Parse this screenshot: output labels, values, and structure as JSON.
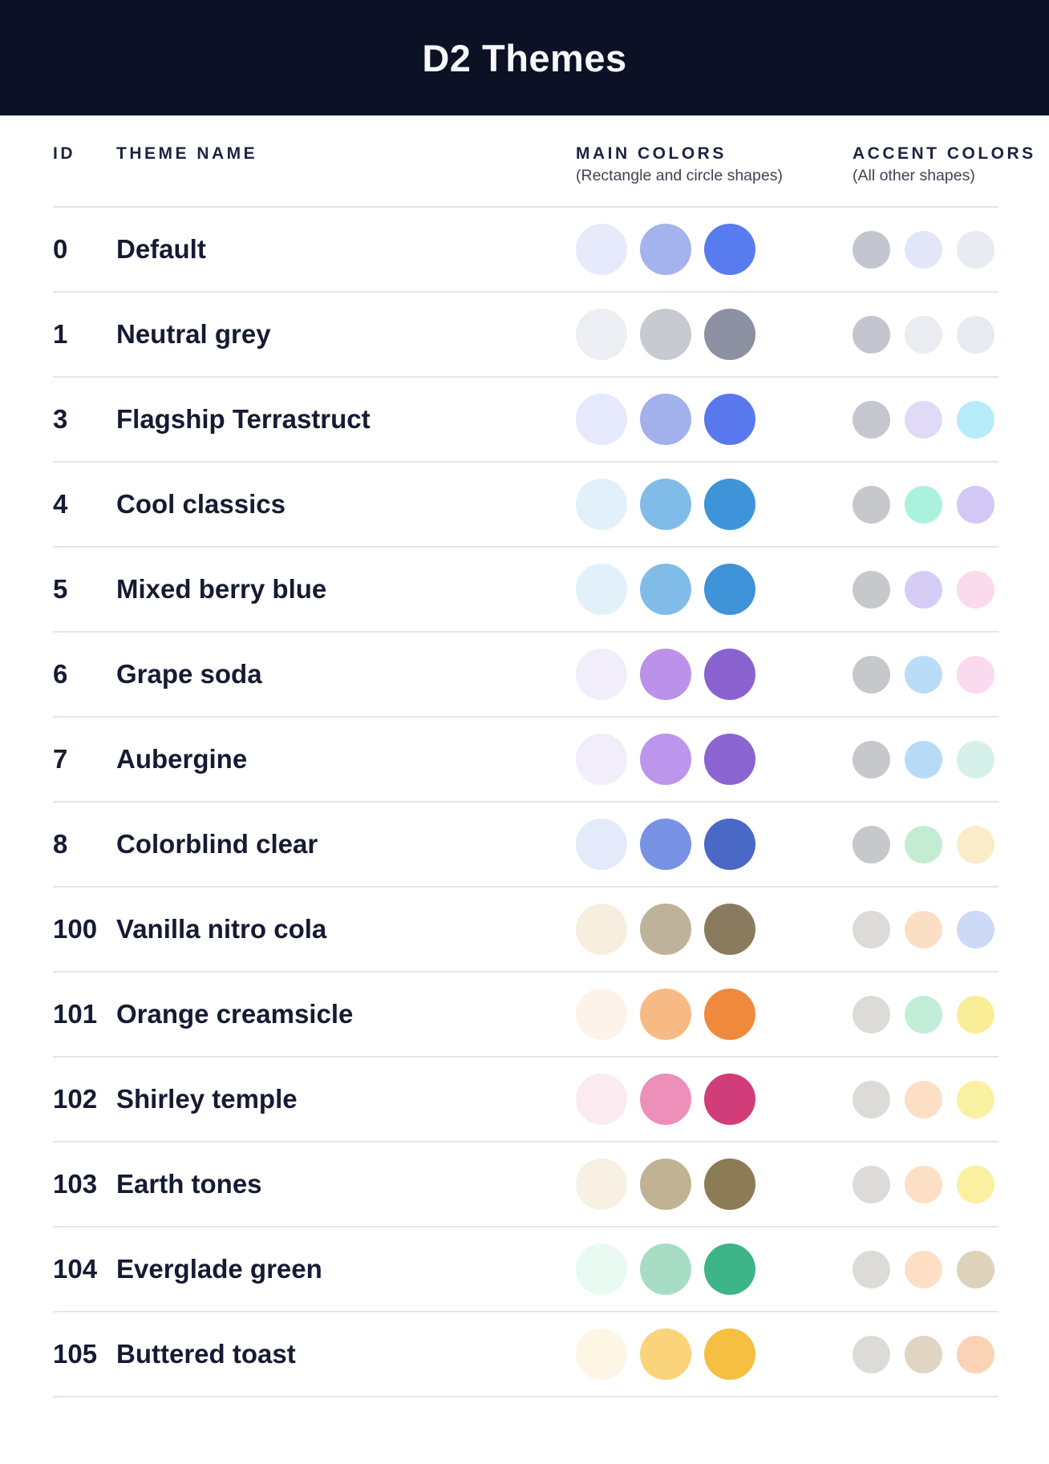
{
  "header": {
    "title": "D2 Themes"
  },
  "columns": {
    "id": "ID",
    "theme_name": "THEME NAME",
    "main_colors": "MAIN COLORS",
    "main_colors_sub": "(Rectangle and circle shapes)",
    "accent_colors": "ACCENT COLORS",
    "accent_colors_sub": "(All other shapes)"
  },
  "themes": [
    {
      "id": "0",
      "name": "Default",
      "main": [
        "#E7EAFB",
        "#A4B2EE",
        "#587CEF"
      ],
      "accent": [
        "#C3C5CF",
        "#E3E6F9",
        "#E9EBF3"
      ]
    },
    {
      "id": "1",
      "name": "Neutral grey",
      "main": [
        "#EDEFF4",
        "#C8CAD2",
        "#8C90A0"
      ],
      "accent": [
        "#C3C5CF",
        "#EAECF2",
        "#E8EAF1"
      ]
    },
    {
      "id": "3",
      "name": "Flagship Terrastruct",
      "main": [
        "#E6E9FB",
        "#A2B0EC",
        "#5A78ED"
      ],
      "accent": [
        "#C5C6CE",
        "#E1DAF7",
        "#B6ECF9"
      ]
    },
    {
      "id": "4",
      "name": "Cool classics",
      "main": [
        "#E2F0FA",
        "#81BCE9",
        "#3F93D8"
      ],
      "accent": [
        "#C7C8CC",
        "#ABF2DE",
        "#D2C7F5"
      ]
    },
    {
      "id": "5",
      "name": "Mixed berry blue",
      "main": [
        "#E2F0FA",
        "#81BCE9",
        "#3F93D8"
      ],
      "accent": [
        "#C7C8CC",
        "#D6CDF6",
        "#FBD9EE"
      ]
    },
    {
      "id": "6",
      "name": "Grape soda",
      "main": [
        "#F2EDFB",
        "#BB91EA",
        "#8A63D0"
      ],
      "accent": [
        "#C7C8CC",
        "#BBDCF8",
        "#FBD9EE"
      ]
    },
    {
      "id": "7",
      "name": "Aubergine",
      "main": [
        "#F1EDFA",
        "#BC96EC",
        "#8A64D0"
      ],
      "accent": [
        "#C7C8CC",
        "#B7DAF7",
        "#D6F1EA"
      ]
    },
    {
      "id": "8",
      "name": "Colorblind clear",
      "main": [
        "#E4EAFA",
        "#7792E4",
        "#4A68C6"
      ],
      "accent": [
        "#C7C8CC",
        "#C4ECD3",
        "#FBECC9"
      ]
    },
    {
      "id": "100",
      "name": "Vanilla nitro cola",
      "main": [
        "#F7EEE0",
        "#BFB29B",
        "#8A7A5E"
      ],
      "accent": [
        "#DCDBD8",
        "#FBDFC5",
        "#CCD9F7"
      ]
    },
    {
      "id": "101",
      "name": "Orange creamsicle",
      "main": [
        "#FEF3EB",
        "#F8BA85",
        "#EF8A3C"
      ],
      "accent": [
        "#DCDBD8",
        "#C2EDD8",
        "#F9EE97"
      ]
    },
    {
      "id": "102",
      "name": "Shirley temple",
      "main": [
        "#FCEAF1",
        "#EC90BA",
        "#D03D78"
      ],
      "accent": [
        "#DCDBD8",
        "#FCDFC5",
        "#FAF0A2"
      ]
    },
    {
      "id": "103",
      "name": "Earth tones",
      "main": [
        "#F8F0E3",
        "#C0B394",
        "#8B7C55"
      ],
      "accent": [
        "#DCDBD8",
        "#FCDFC5",
        "#FAF0A0"
      ]
    },
    {
      "id": "104",
      "name": "Everglade green",
      "main": [
        "#E8FAF1",
        "#A7DDC4",
        "#3EB489"
      ],
      "accent": [
        "#DCDBD8",
        "#FCDFC5",
        "#DED2BA"
      ]
    },
    {
      "id": "105",
      "name": "Buttered toast",
      "main": [
        "#FDF6E4",
        "#FAD37A",
        "#F6BF41"
      ],
      "accent": [
        "#DCDBD8",
        "#E0D5C3",
        "#FBD2B6"
      ]
    }
  ],
  "colors": {
    "header_bg": "#0D1126",
    "header_text": "#F7F8FC",
    "row_divider": "#E3E5EF",
    "text": "#161B33",
    "column_heading": "#1D2340",
    "column_subheading": "#3E4456",
    "page_bg": "#FFFFFF"
  }
}
